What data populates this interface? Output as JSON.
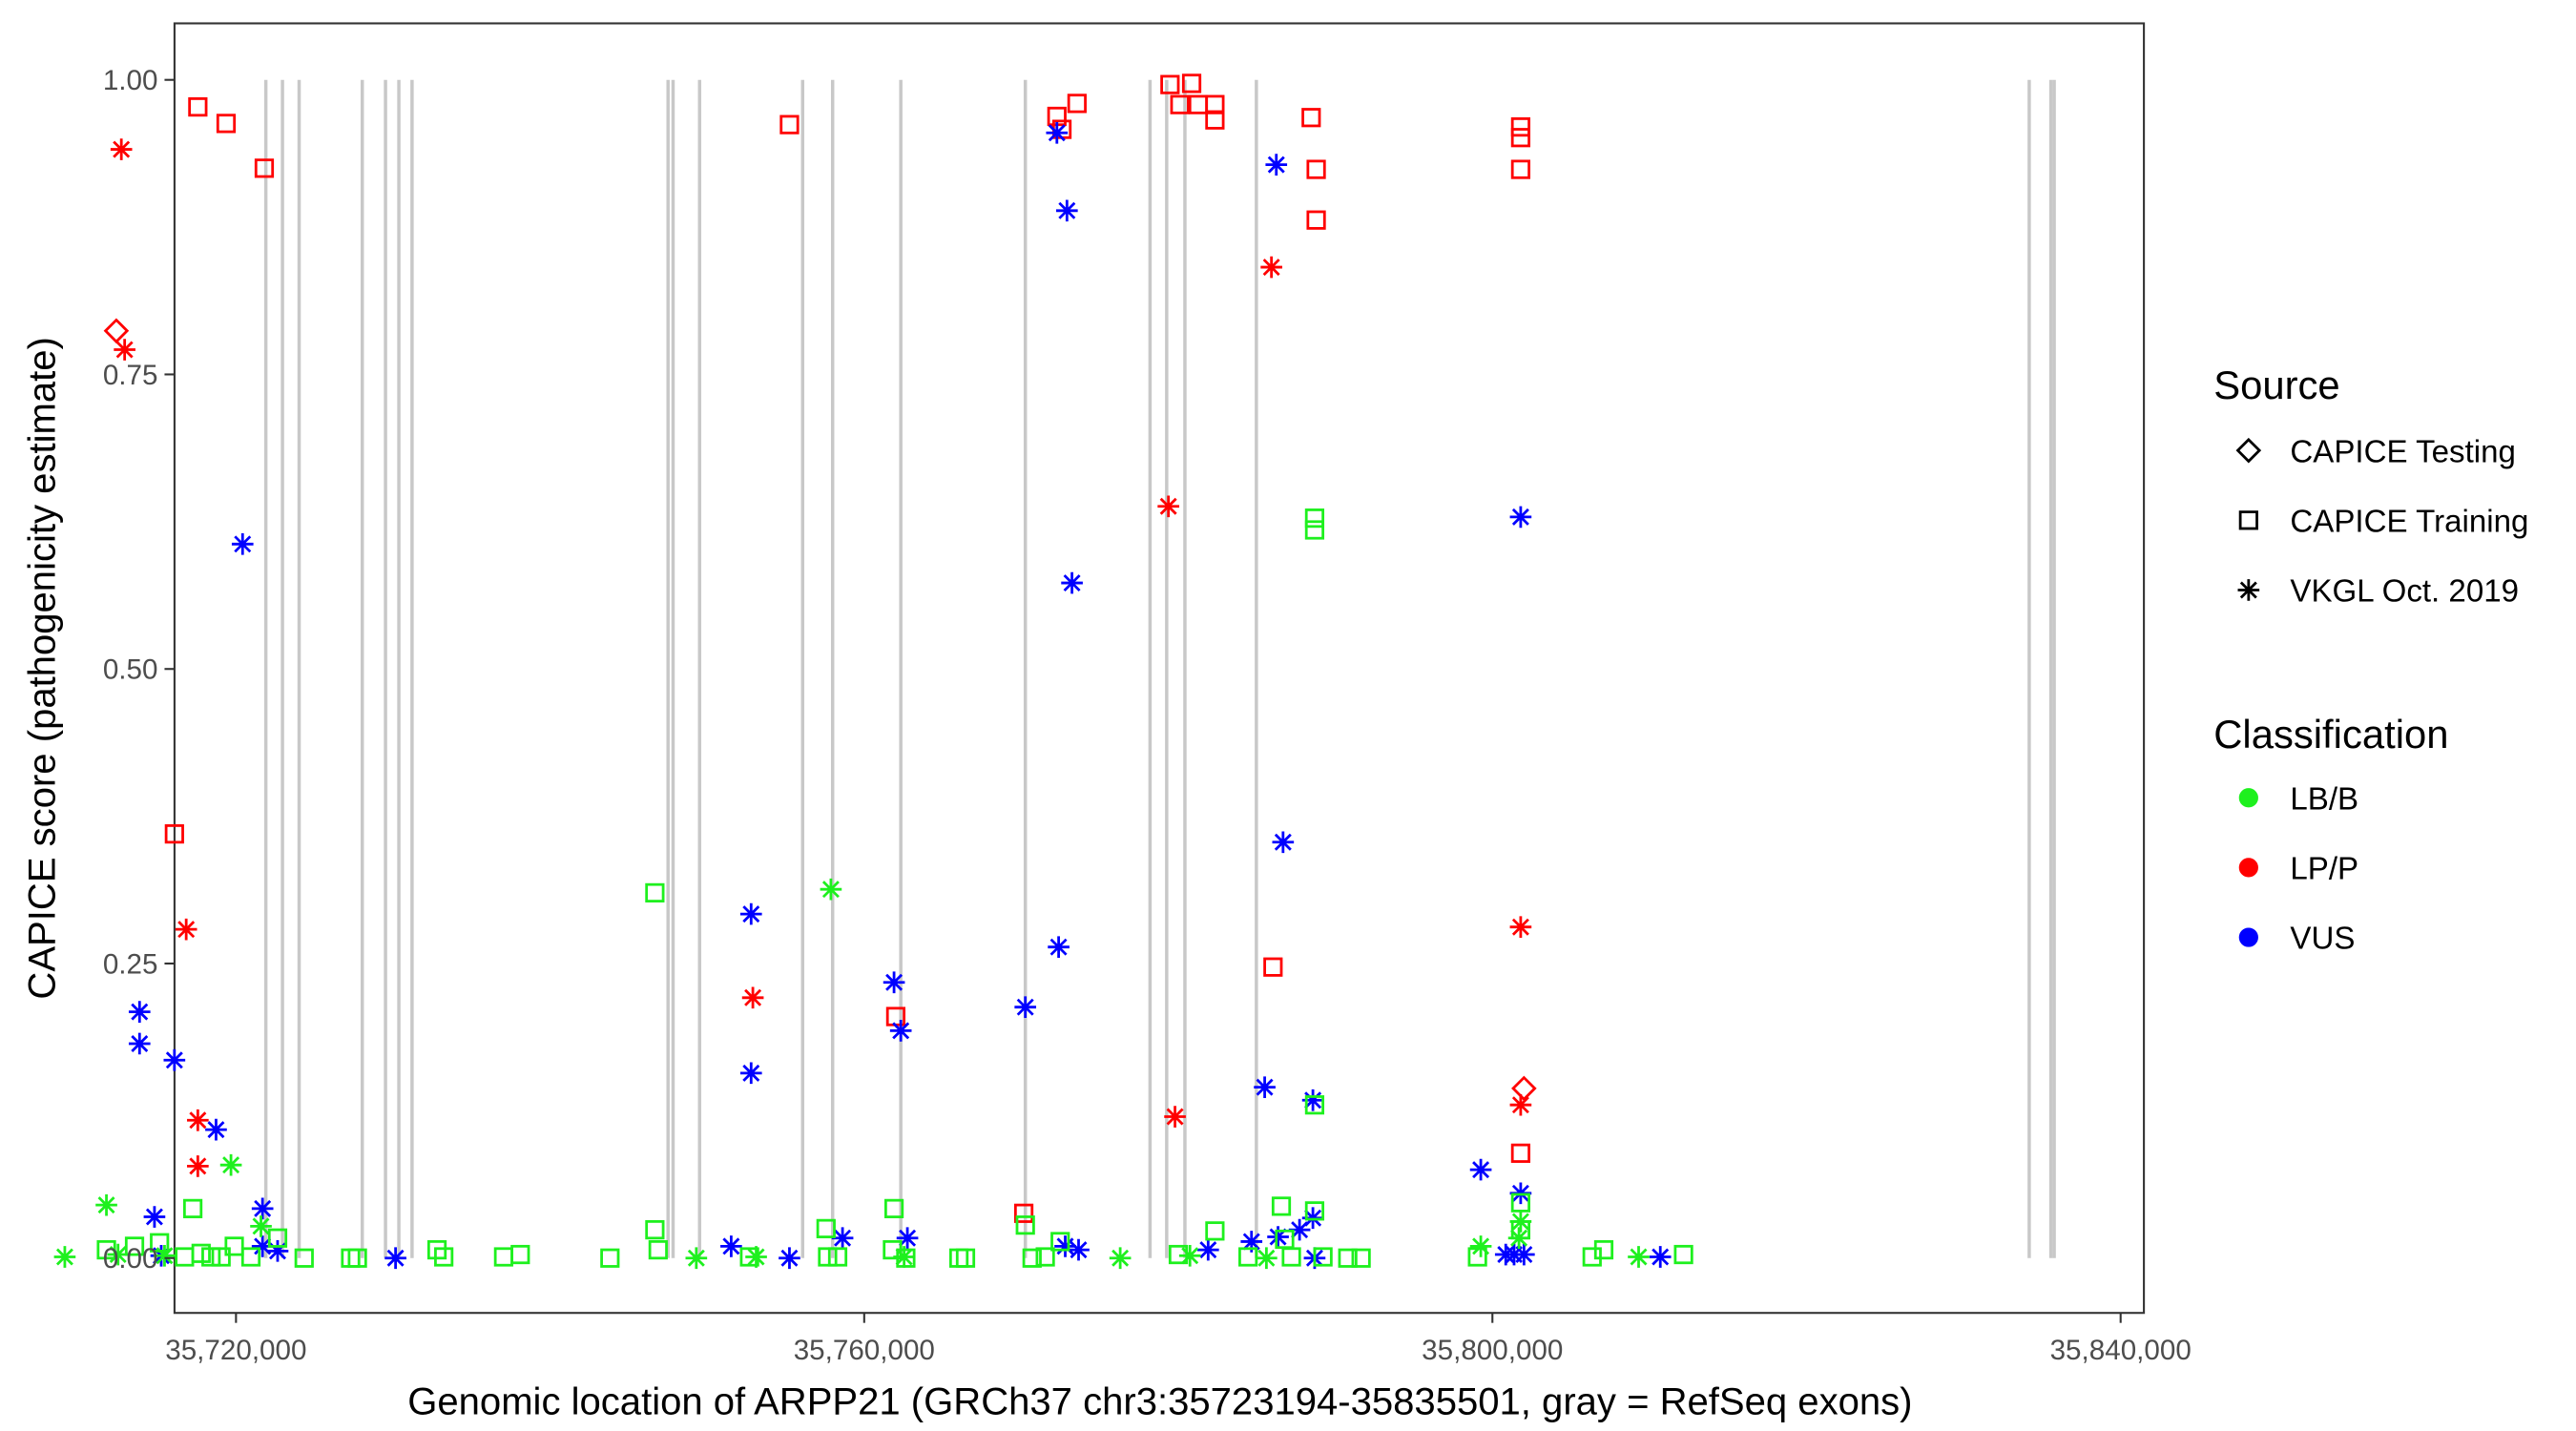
{
  "chart_data": {
    "type": "scatter",
    "title": "",
    "xlabel": "Genomic location of ARPP21 (GRCh37 chr3:35723194-35835501, gray = RefSeq exons)",
    "ylabel": "CAPICE score (pathogenicity estimate)",
    "xlim": [
      35715000,
      35840000
    ],
    "ylim": [
      -0.045,
      1.05
    ],
    "x_ticks": [
      35720000,
      35760000,
      35800000,
      35840000
    ],
    "x_tick_labels": [
      "35,720,000",
      "35,760,000",
      "35,800,000",
      "35,840,000"
    ],
    "y_ticks": [
      0,
      0.25,
      0.5,
      0.75,
      1.0
    ],
    "y_tick_labels": [
      "0.00",
      "0.25",
      "0.50",
      "0.75",
      "1.00"
    ],
    "grid": false,
    "exon_color": "#c8c8c8",
    "exon_positions": [
      35721900,
      35722960,
      35724020,
      35728040,
      35729520,
      35730370,
      35731210,
      35747510,
      35747830,
      35749520,
      35756080,
      35757990,
      35762330,
      35770260,
      35778200,
      35779260,
      35780420,
      35784970,
      35834180,
      35835560,
      35835770
    ],
    "legend": {
      "placement": "right",
      "source_title": "Source",
      "sources": [
        {
          "label": "CAPICE Testing",
          "shape": "diamond"
        },
        {
          "label": "CAPICE Training",
          "shape": "square"
        },
        {
          "label": "VKGL Oct. 2019",
          "shape": "asterisk"
        }
      ],
      "class_title": "Classification",
      "classes": [
        {
          "label": "LB/B",
          "color": "#1ef01e"
        },
        {
          "label": "LP/P",
          "color": "#ff0000"
        },
        {
          "label": "VUS",
          "color": "#0000ff"
        }
      ]
    },
    "point_fields": [
      "position",
      "score",
      "source_index",
      "class_index"
    ],
    "points": [
      [
        35717570,
        0.977,
        1,
        1
      ],
      [
        35719370,
        0.963,
        1,
        1
      ],
      [
        35721800,
        0.925,
        1,
        1
      ],
      [
        35716080,
        0.36,
        1,
        1
      ],
      [
        35755240,
        0.962,
        1,
        1
      ],
      [
        35762010,
        0.205,
        1,
        1
      ],
      [
        35770160,
        0.038,
        1,
        1
      ],
      [
        35772270,
        0.969,
        1,
        1
      ],
      [
        35772590,
        0.958,
        1,
        1
      ],
      [
        35773550,
        0.98,
        1,
        1
      ],
      [
        35779470,
        0.996,
        1,
        1
      ],
      [
        35780850,
        0.997,
        1,
        1
      ],
      [
        35780100,
        0.979,
        1,
        1
      ],
      [
        35781270,
        0.979,
        1,
        1
      ],
      [
        35782330,
        0.979,
        1,
        1
      ],
      [
        35782330,
        0.966,
        1,
        1
      ],
      [
        35788460,
        0.968,
        1,
        1
      ],
      [
        35788780,
        0.924,
        1,
        1
      ],
      [
        35788780,
        0.881,
        1,
        1
      ],
      [
        35786030,
        0.247,
        1,
        1
      ],
      [
        35801800,
        0.96,
        1,
        1
      ],
      [
        35801800,
        0.951,
        1,
        1
      ],
      [
        35801800,
        0.924,
        1,
        1
      ],
      [
        35801800,
        0.089,
        1,
        1
      ],
      [
        35712700,
        0.941,
        2,
        1
      ],
      [
        35712910,
        0.771,
        2,
        1
      ],
      [
        35716830,
        0.279,
        2,
        1
      ],
      [
        35717570,
        0.117,
        2,
        1
      ],
      [
        35717570,
        0.078,
        2,
        1
      ],
      [
        35779370,
        0.638,
        2,
        1
      ],
      [
        35779790,
        0.12,
        2,
        1
      ],
      [
        35785930,
        0.841,
        2,
        1
      ],
      [
        35752910,
        0.221,
        2,
        1
      ],
      [
        35801800,
        0.281,
        2,
        1
      ],
      [
        35801800,
        0.13,
        2,
        1
      ],
      [
        35712380,
        0.787,
        0,
        1
      ],
      [
        35802010,
        0.144,
        0,
        1
      ],
      [
        35720420,
        0.606,
        2,
        2
      ],
      [
        35713860,
        0.209,
        2,
        2
      ],
      [
        35713860,
        0.182,
        2,
        2
      ],
      [
        35716080,
        0.168,
        2,
        2
      ],
      [
        35714810,
        0.035,
        2,
        2
      ],
      [
        35718730,
        0.109,
        2,
        2
      ],
      [
        35721690,
        0.042,
        2,
        2
      ],
      [
        35721690,
        0.01,
        2,
        2
      ],
      [
        35722650,
        0.006,
        2,
        2
      ],
      [
        35730160,
        0.0,
        2,
        2
      ],
      [
        35762330,
        0.193,
        2,
        2
      ],
      [
        35762750,
        0.017,
        2,
        2
      ],
      [
        35752800,
        0.292,
        2,
        2
      ],
      [
        35752800,
        0.157,
        2,
        2
      ],
      [
        35751530,
        0.01,
        2,
        2
      ],
      [
        35755240,
        0.0,
        2,
        2
      ],
      [
        35758620,
        0.017,
        2,
        2
      ],
      [
        35761900,
        0.234,
        2,
        2
      ],
      [
        35770260,
        0.213,
        2,
        2
      ],
      [
        35772270,
        0.955,
        2,
        2
      ],
      [
        35772910,
        0.889,
        2,
        2
      ],
      [
        35773230,
        0.573,
        2,
        2
      ],
      [
        35772380,
        0.264,
        2,
        2
      ],
      [
        35772800,
        0.01,
        2,
        2
      ],
      [
        35773650,
        0.007,
        2,
        2
      ],
      [
        35786240,
        0.928,
        2,
        2
      ],
      [
        35786670,
        0.353,
        2,
        2
      ],
      [
        35785500,
        0.145,
        2,
        2
      ],
      [
        35788570,
        0.134,
        2,
        2
      ],
      [
        35784660,
        0.014,
        2,
        2
      ],
      [
        35786350,
        0.018,
        2,
        2
      ],
      [
        35787720,
        0.024,
        2,
        2
      ],
      [
        35788570,
        0.034,
        2,
        2
      ],
      [
        35788680,
        0.0,
        2,
        2
      ],
      [
        35781900,
        0.007,
        2,
        2
      ],
      [
        35799260,
        0.075,
        2,
        2
      ],
      [
        35801800,
        0.629,
        2,
        2
      ],
      [
        35801800,
        0.055,
        2,
        2
      ],
      [
        35800850,
        0.003,
        2,
        2
      ],
      [
        35801380,
        0.003,
        2,
        2
      ],
      [
        35802010,
        0.003,
        2,
        2
      ],
      [
        35810690,
        0.001,
        2,
        2
      ],
      [
        35715240,
        0.002,
        2,
        2
      ],
      [
        35757880,
        0.313,
        2,
        0
      ],
      [
        35719680,
        0.079,
        2,
        0
      ],
      [
        35711750,
        0.045,
        2,
        0
      ],
      [
        35709100,
        0.001,
        2,
        0
      ],
      [
        35712490,
        0.003,
        2,
        0
      ],
      [
        35721590,
        0.027,
        2,
        0
      ],
      [
        35749310,
        0.0,
        2,
        0
      ],
      [
        35753120,
        0.001,
        2,
        0
      ],
      [
        35762540,
        0.001,
        2,
        0
      ],
      [
        35776300,
        0.0,
        2,
        0
      ],
      [
        35780740,
        0.002,
        2,
        0
      ],
      [
        35785610,
        0.0,
        2,
        0
      ],
      [
        35799260,
        0.01,
        2,
        0
      ],
      [
        35801800,
        0.031,
        2,
        0
      ],
      [
        35801690,
        0.017,
        2,
        0
      ],
      [
        35809310,
        0.001,
        2,
        0
      ],
      [
        35715450,
        0.002,
        2,
        0
      ],
      [
        35746670,
        0.31,
        1,
        0
      ],
      [
        35788680,
        0.628,
        1,
        0
      ],
      [
        35788680,
        0.618,
        1,
        0
      ],
      [
        35788680,
        0.13,
        1,
        0
      ],
      [
        35717250,
        0.042,
        1,
        0
      ],
      [
        35746670,
        0.024,
        1,
        0
      ],
      [
        35757570,
        0.025,
        1,
        0
      ],
      [
        35761900,
        0.042,
        1,
        0
      ],
      [
        35770260,
        0.028,
        1,
        0
      ],
      [
        35782330,
        0.023,
        1,
        0
      ],
      [
        35786560,
        0.044,
        1,
        0
      ],
      [
        35788680,
        0.04,
        1,
        0
      ],
      [
        35711750,
        0.007,
        1,
        0
      ],
      [
        35713540,
        0.01,
        1,
        0
      ],
      [
        35715130,
        0.013,
        1,
        0
      ],
      [
        35716720,
        0.001,
        1,
        0
      ],
      [
        35717780,
        0.004,
        1,
        0
      ],
      [
        35718410,
        0.001,
        1,
        0
      ],
      [
        35719050,
        0.001,
        1,
        0
      ],
      [
        35719890,
        0.01,
        1,
        0
      ],
      [
        35720950,
        0.001,
        1,
        0
      ],
      [
        35722650,
        0.017,
        1,
        0
      ],
      [
        35724340,
        0.0,
        1,
        0
      ],
      [
        35727300,
        0.0,
        1,
        0
      ],
      [
        35727730,
        0.0,
        1,
        0
      ],
      [
        35732800,
        0.007,
        1,
        0
      ],
      [
        35733230,
        0.001,
        1,
        0
      ],
      [
        35737040,
        0.001,
        1,
        0
      ],
      [
        35738100,
        0.003,
        1,
        0
      ],
      [
        35743810,
        0.0,
        1,
        0
      ],
      [
        35746880,
        0.007,
        1,
        0
      ],
      [
        35752700,
        0.001,
        1,
        0
      ],
      [
        35757670,
        0.001,
        1,
        0
      ],
      [
        35758310,
        0.001,
        1,
        0
      ],
      [
        35761800,
        0.007,
        1,
        0
      ],
      [
        35762650,
        0.0,
        1,
        0
      ],
      [
        35766030,
        0.0,
        1,
        0
      ],
      [
        35766450,
        0.0,
        1,
        0
      ],
      [
        35770690,
        0.0,
        1,
        0
      ],
      [
        35772480,
        0.014,
        1,
        0
      ],
      [
        35771530,
        0.001,
        1,
        0
      ],
      [
        35780000,
        0.003,
        1,
        0
      ],
      [
        35784440,
        0.001,
        1,
        0
      ],
      [
        35787200,
        0.001,
        1,
        0
      ],
      [
        35790790,
        0.0,
        1,
        0
      ],
      [
        35791640,
        0.0,
        1,
        0
      ],
      [
        35799050,
        0.001,
        1,
        0
      ],
      [
        35801800,
        0.047,
        1,
        0
      ],
      [
        35801800,
        0.024,
        1,
        0
      ],
      [
        35806350,
        0.001,
        1,
        0
      ],
      [
        35807090,
        0.007,
        1,
        0
      ],
      [
        35812170,
        0.003,
        1,
        0
      ],
      [
        35786770,
        0.016,
        1,
        0
      ],
      [
        35789210,
        0.001,
        1,
        0
      ]
    ]
  }
}
